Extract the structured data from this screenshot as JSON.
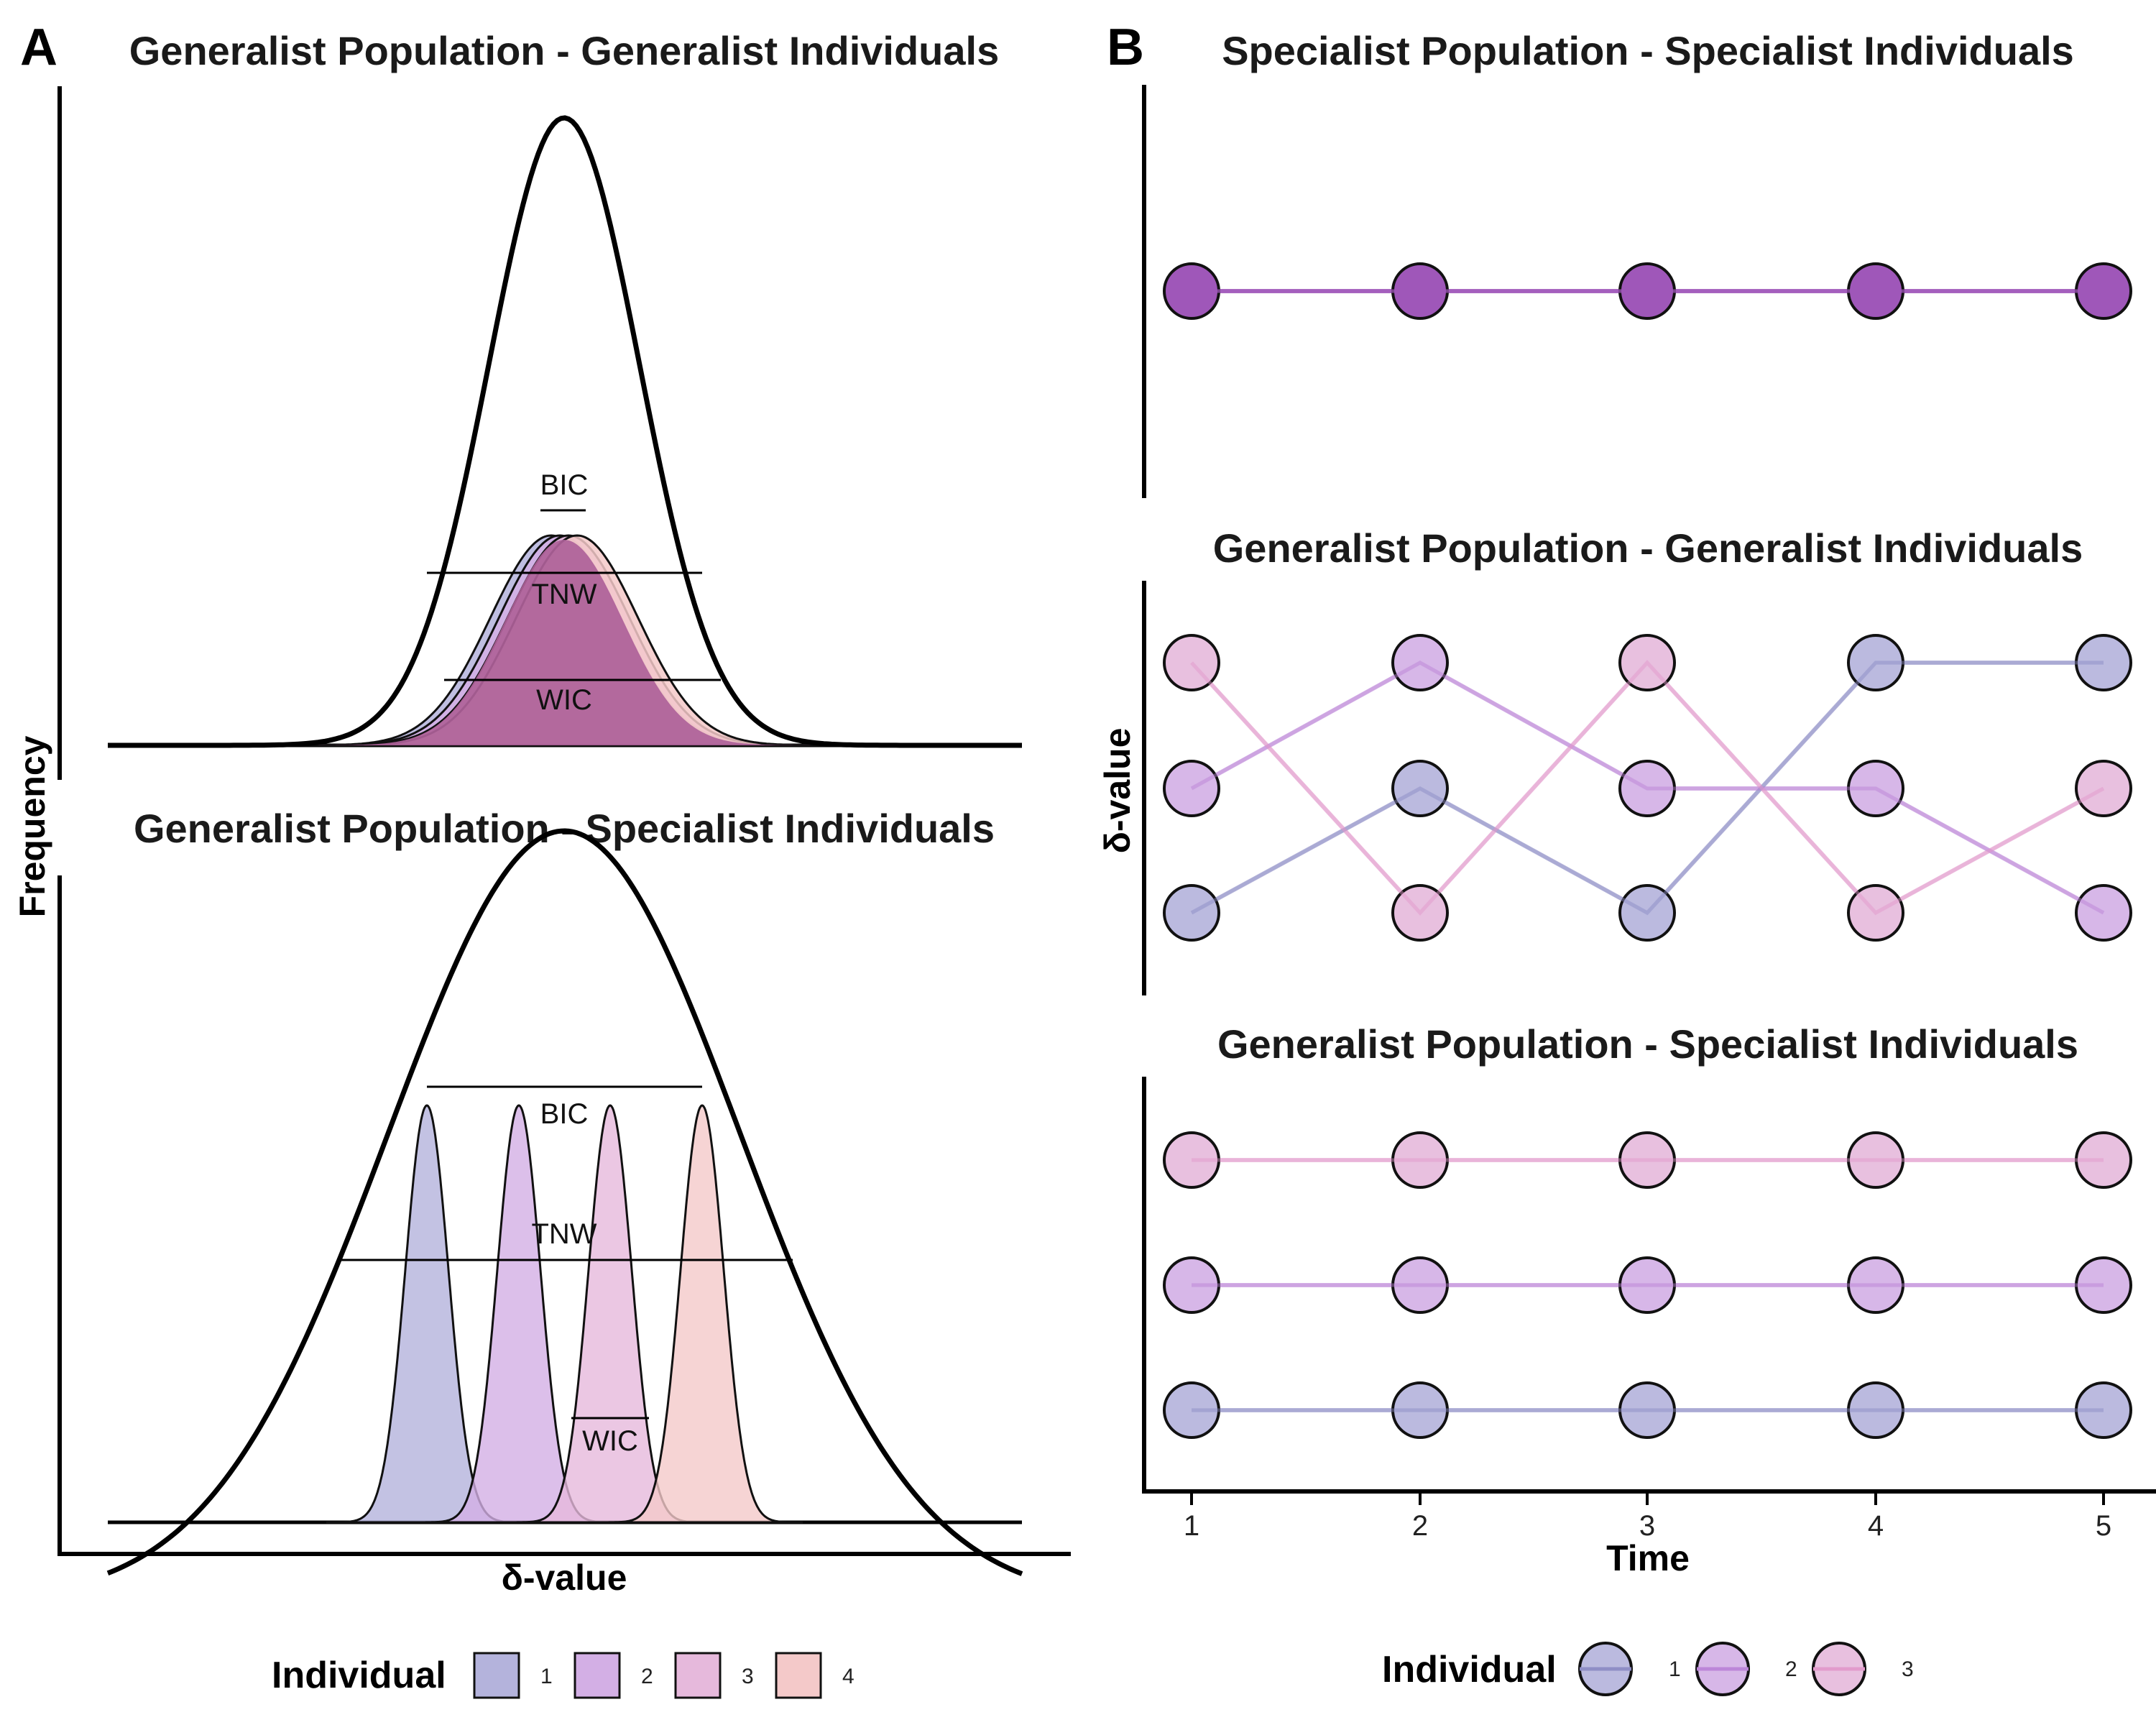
{
  "colors": {
    "ind1": "#b4b3dc",
    "ind2": "#d3afe5",
    "ind3": "#e6b9dc",
    "ind4": "#f4c9c9",
    "spec_pop": "#9f57b9",
    "overlap": "#ae6199",
    "line1": "#8f8ec6",
    "line2": "#bc86d8",
    "line3": "#e29bcc"
  },
  "panel_a": {
    "letter": "A",
    "top": {
      "title": "Generalist Population - Generalist Individuals",
      "annotations": {
        "bic": "BIC",
        "tnw": "TNW",
        "wic": "WIC"
      }
    },
    "bottom": {
      "title": "Generalist Population - Specialist Individuals",
      "annotations": {
        "bic": "BIC",
        "tnw": "TNW",
        "wic": "WIC"
      }
    },
    "ylabel": "Frequency",
    "xlabel": "δ-value",
    "legend": {
      "title": "Individual",
      "items": [
        "1",
        "2",
        "3",
        "4"
      ]
    }
  },
  "panel_b": {
    "letter": "B",
    "top_title": "Specialist Population - Specialist Individuals",
    "mid_title": "Generalist Population - Generalist Individuals",
    "bot_title": "Generalist Population - Specialist Individuals",
    "ylabel": "δ-value",
    "xlabel": "Time",
    "ticks": [
      "1",
      "2",
      "3",
      "4",
      "5"
    ],
    "legend": {
      "title": "Individual",
      "items": [
        "1",
        "2",
        "3"
      ]
    }
  },
  "chart_data": [
    {
      "type": "line",
      "title": "Specialist Population - Specialist Individuals",
      "x": [
        1,
        2,
        3,
        4,
        5
      ],
      "series": [
        {
          "values": [
            2,
            2,
            2,
            2,
            2
          ]
        }
      ]
    },
    {
      "type": "line",
      "title": "Generalist Population - Generalist Individuals",
      "x": [
        1,
        2,
        3,
        4,
        5
      ],
      "series": [
        {
          "name": "1",
          "values": [
            1,
            2,
            1,
            3,
            3
          ]
        },
        {
          "name": "2",
          "values": [
            2,
            3,
            2,
            2,
            1
          ]
        },
        {
          "name": "3",
          "values": [
            3,
            1,
            3,
            1,
            2
          ]
        }
      ]
    },
    {
      "type": "line",
      "title": "Generalist Population - Specialist Individuals",
      "x": [
        1,
        2,
        3,
        4,
        5
      ],
      "series": [
        {
          "name": "1",
          "values": [
            1,
            1,
            1,
            1,
            1
          ]
        },
        {
          "name": "2",
          "values": [
            2,
            2,
            2,
            2,
            2
          ]
        },
        {
          "name": "3",
          "values": [
            3,
            3,
            3,
            3,
            3
          ]
        }
      ]
    }
  ]
}
